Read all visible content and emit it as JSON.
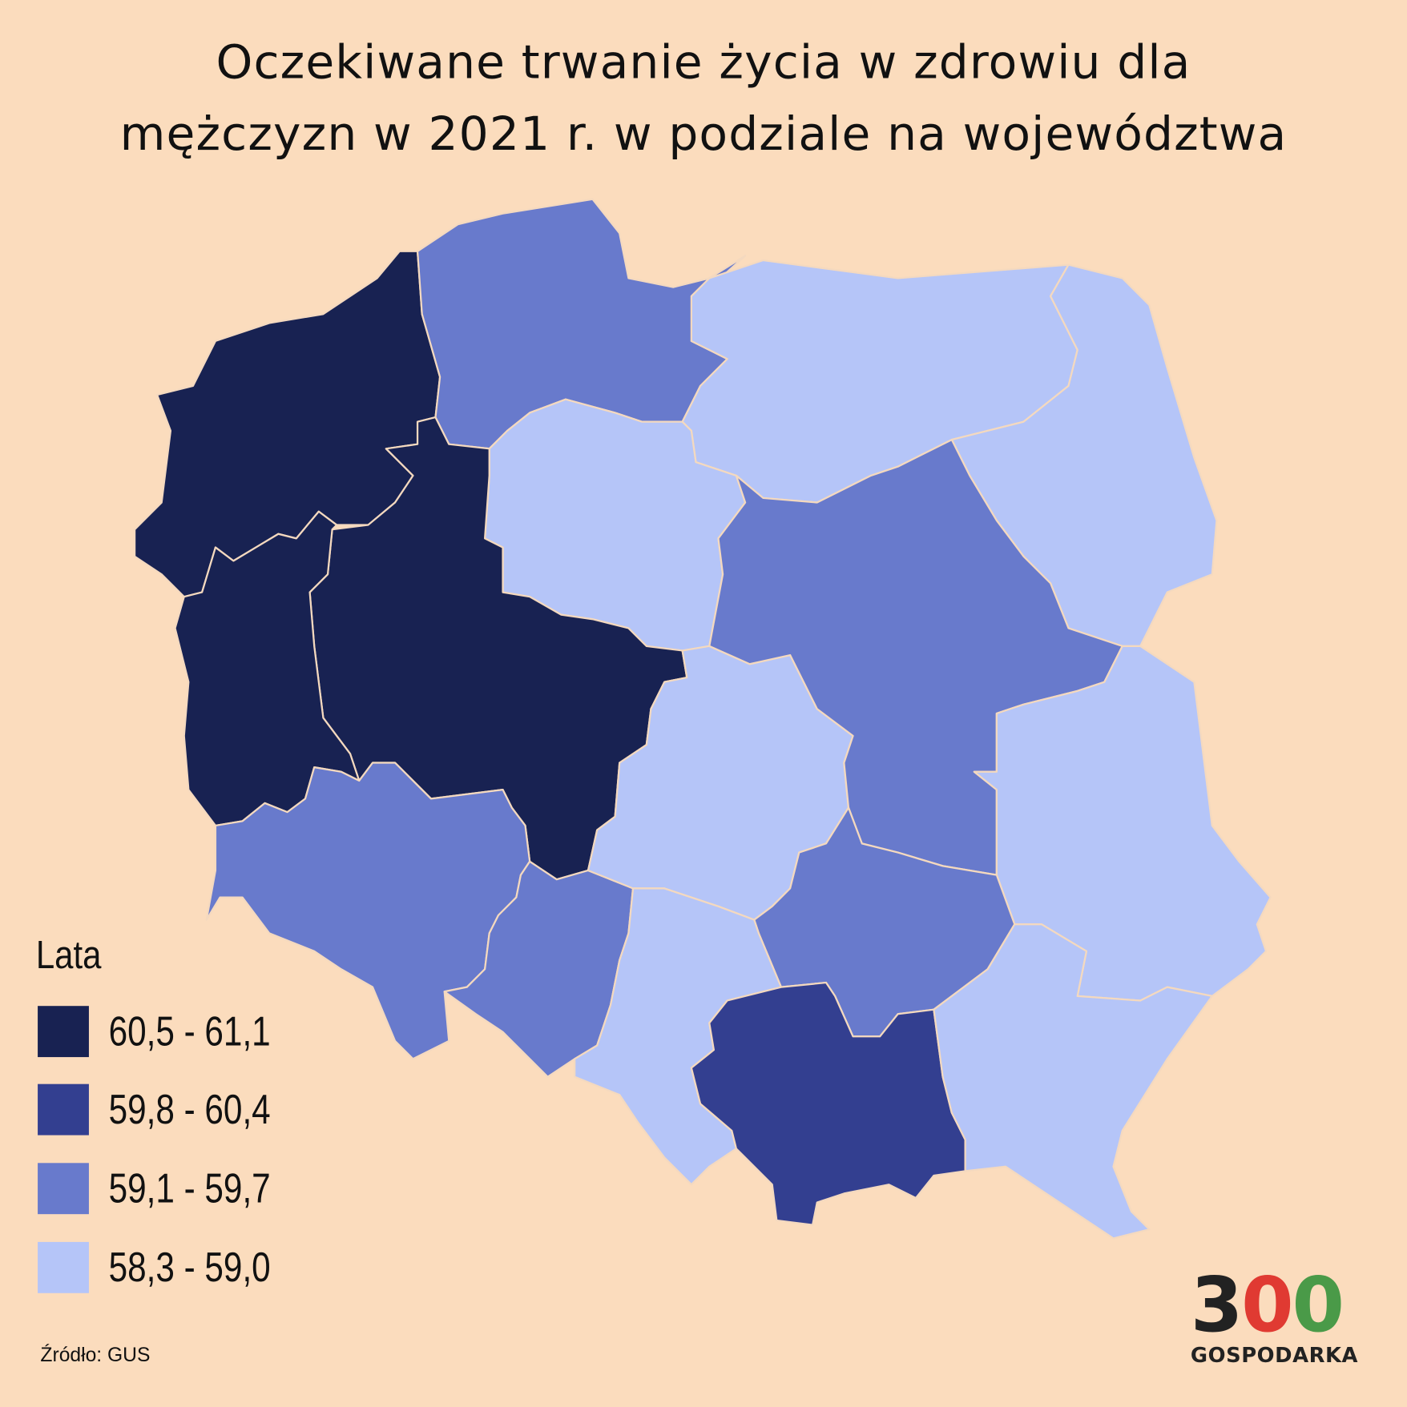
{
  "title": {
    "line1": "Oczekiwane trwanie życia w zdrowiu dla",
    "line2": "mężczyzn w 2021 r. w podziale na województwa"
  },
  "legend": {
    "title": "Lata",
    "items": [
      {
        "label": "60,5 - 61,1",
        "color": "#182252"
      },
      {
        "label": "59,8 - 60,4",
        "color": "#333f90"
      },
      {
        "label": "59,1 - 59,7",
        "color": "#687acc"
      },
      {
        "label": "58,3 - 59,0",
        "color": "#b5c5f8"
      }
    ]
  },
  "source": "Źródło: GUS",
  "logo": {
    "digit": "3",
    "zero1": "0",
    "zero2": "0",
    "text": "GOSPODARKA",
    "colors": {
      "digit": "#222222",
      "zero1": "#e03a32",
      "zero2": "#4a9a48"
    }
  },
  "colors": {
    "background": "#fbdcbd",
    "border": "#f4d9bf"
  }
}
